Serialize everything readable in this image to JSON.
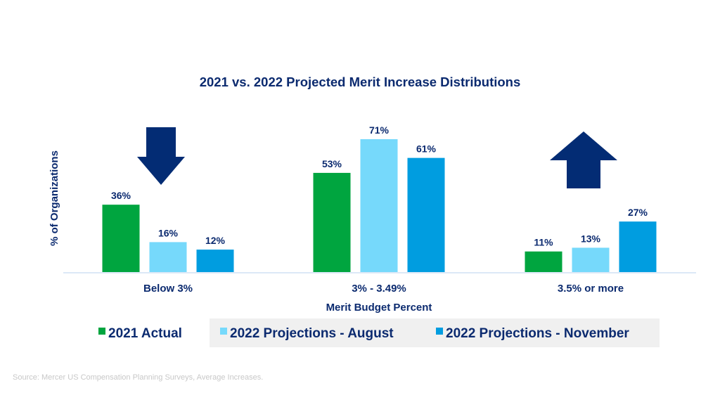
{
  "chart_data": {
    "type": "bar",
    "title": "2021 vs. 2022 Projected Merit Increase Distributions",
    "xlabel": "Merit Budget Percent",
    "ylabel": "% of Organizations",
    "categories": [
      "Below 3%",
      "3% - 3.49%",
      "3.5% or more"
    ],
    "series": [
      {
        "name": "2021 Actual",
        "color": "#00a53f",
        "values": [
          36,
          53,
          11
        ],
        "labels": [
          "36%",
          "53%",
          "11%"
        ]
      },
      {
        "name": "2022 Projections - August",
        "color": "#76d9fb",
        "values": [
          16,
          71,
          13
        ],
        "labels": [
          "16%",
          "71%",
          "13%"
        ]
      },
      {
        "name": "2022 Projections - November",
        "color": "#009de0",
        "values": [
          12,
          61,
          27
        ],
        "labels": [
          "12%",
          "61%",
          "27%"
        ]
      }
    ],
    "ylim": [
      0,
      71
    ],
    "grid": false,
    "legend_position": "bottom",
    "annotations": [
      {
        "type": "arrow",
        "direction": "down",
        "category": "Below 3%",
        "color": "#032c74"
      },
      {
        "type": "arrow",
        "direction": "up",
        "category": "3.5% or more",
        "color": "#032c74"
      }
    ],
    "axis_color": "#dce8f7",
    "source": "Source: Mercer US Compensation Planning Surveys, Average Increases."
  }
}
